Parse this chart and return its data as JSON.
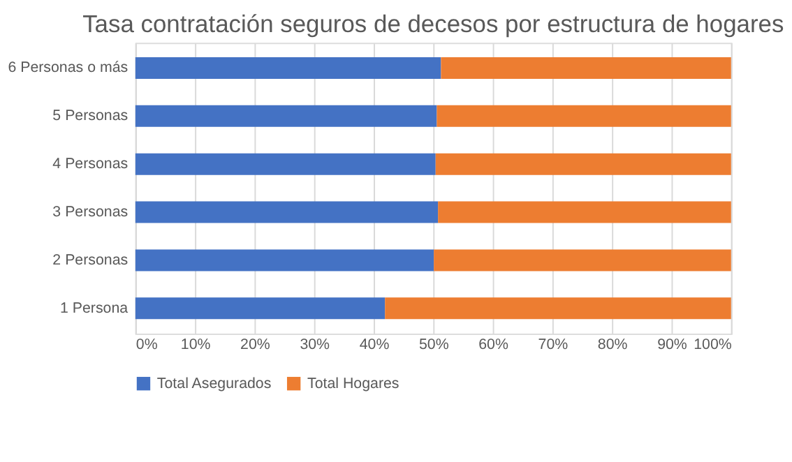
{
  "chart_data": {
    "type": "bar",
    "orientation": "horizontal",
    "stacked": true,
    "title": "Tasa contratación seguros de decesos por estructura de hogares",
    "categories": [
      "6 Personas o más",
      "5 Personas",
      "4 Personas",
      "3 Personas",
      "2 Personas",
      "1 Persona"
    ],
    "series": [
      {
        "name": "Total Asegurados",
        "color": "#4472c4",
        "values": [
          51.3,
          50.6,
          50.4,
          50.8,
          50.1,
          41.9
        ]
      },
      {
        "name": "Total Hogares",
        "color": "#ed7d31",
        "values": [
          48.7,
          49.4,
          49.6,
          49.2,
          49.9,
          58.1
        ]
      }
    ],
    "xlim": [
      0,
      100
    ],
    "xticks": [
      {
        "value": 0,
        "label": "0%"
      },
      {
        "value": 10,
        "label": "10%"
      },
      {
        "value": 20,
        "label": "20%"
      },
      {
        "value": 30,
        "label": "30%"
      },
      {
        "value": 40,
        "label": "40%"
      },
      {
        "value": 50,
        "label": "50%"
      },
      {
        "value": 60,
        "label": "60%"
      },
      {
        "value": 70,
        "label": "70%"
      },
      {
        "value": 80,
        "label": "80%"
      },
      {
        "value": 90,
        "label": "90%"
      },
      {
        "value": 100,
        "label": "100%"
      }
    ],
    "grid": "x",
    "legend": "bottom"
  }
}
